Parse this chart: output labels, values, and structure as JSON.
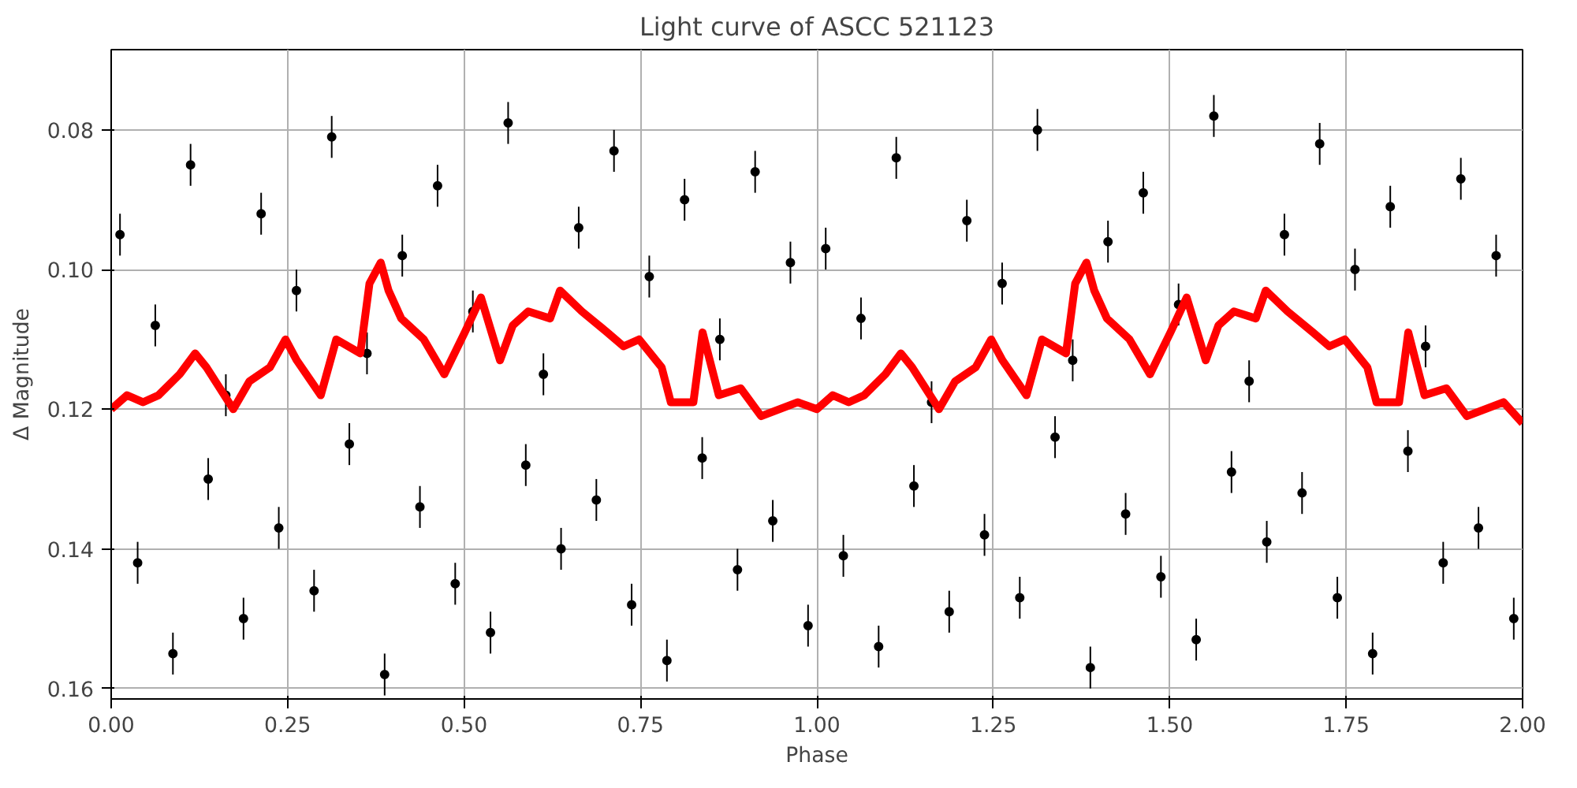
{
  "chart_data": {
    "type": "scatter",
    "title": "Light curve of ASCC 521123",
    "xlabel": "Phase",
    "ylabel": "Δ Magnitude",
    "xlim": [
      0,
      2
    ],
    "ylim": [
      0.1615,
      0.0685
    ],
    "xticks": [
      {
        "value": 0,
        "label": "0.00"
      },
      {
        "value": 0.25,
        "label": "0.25"
      },
      {
        "value": 0.5,
        "label": "0.50"
      },
      {
        "value": 0.75,
        "label": "0.75"
      },
      {
        "value": 1,
        "label": "1.00"
      },
      {
        "value": 1.25,
        "label": "1.25"
      },
      {
        "value": 1.5,
        "label": "1.50"
      },
      {
        "value": 1.75,
        "label": "1.75"
      },
      {
        "value": 2,
        "label": "2.00"
      }
    ],
    "yticks": [
      0.08,
      {
        "value": 0.1,
        "label": "0.10"
      },
      0.12,
      0.14,
      0.16
    ],
    "grid": true,
    "series": [
      {
        "type": "scatter",
        "color": "#000000",
        "marker": "circle",
        "x": [
          0.0125,
          0.0375,
          0.0625,
          0.0875,
          0.1125,
          0.1375,
          0.1625,
          0.1875,
          0.2125,
          0.2375,
          0.2625,
          0.2875,
          0.3125,
          0.3375,
          0.3625,
          0.3875,
          0.4125,
          0.4375,
          0.4625,
          0.4875,
          0.5125,
          0.5375,
          0.5625,
          0.5875,
          0.6125,
          0.6375,
          0.6625,
          0.6875,
          0.7125,
          0.7375,
          0.7625,
          0.7875,
          0.8125,
          0.8375,
          0.8625,
          0.8875,
          0.9125,
          0.9375,
          0.9625,
          0.9875,
          1.0125,
          1.0375,
          1.0625,
          1.0875,
          1.1125,
          1.1375,
          1.1625,
          1.1875,
          1.2125,
          1.2375,
          1.2625,
          1.2875,
          1.3125,
          1.3375,
          1.3625,
          1.3875,
          1.4125,
          1.4375,
          1.4625,
          1.4875,
          1.5125,
          1.5375,
          1.5625,
          1.5875,
          1.6125,
          1.6375,
          1.6625,
          1.6875,
          1.7125,
          1.7375,
          1.7625,
          1.7875,
          1.8125,
          1.8375,
          1.8625,
          1.8875,
          1.9125,
          1.9375,
          1.9625,
          1.9875
        ],
        "values": [
          0.095,
          0.142,
          0.108,
          0.155,
          0.085,
          0.13,
          0.118,
          0.15,
          0.092,
          0.137,
          0.103,
          0.146,
          0.081,
          0.125,
          0.112,
          0.158,
          0.098,
          0.134,
          0.088,
          0.145,
          0.106,
          0.152,
          0.079,
          0.128,
          0.115,
          0.14,
          0.094,
          0.133,
          0.083,
          0.148,
          0.101,
          0.156,
          0.09,
          0.127,
          0.11,
          0.143,
          0.086,
          0.136,
          0.099,
          0.151,
          0.097,
          0.141,
          0.107,
          0.154,
          0.084,
          0.131,
          0.119,
          0.149,
          0.093,
          0.138,
          0.102,
          0.147,
          0.08,
          0.124,
          0.113,
          0.157,
          0.096,
          0.135,
          0.089,
          0.144,
          0.105,
          0.153,
          0.078,
          0.129,
          0.116,
          0.139,
          0.095,
          0.132,
          0.082,
          0.147,
          0.1,
          0.155,
          0.091,
          0.126,
          0.111,
          0.142,
          0.087,
          0.137,
          0.098,
          0.15
        ],
        "errors": [
          0.003,
          0.003,
          0.003,
          0.003,
          0.003,
          0.003,
          0.003,
          0.003,
          0.003,
          0.003,
          0.003,
          0.003,
          0.003,
          0.003,
          0.003,
          0.003,
          0.003,
          0.003,
          0.003,
          0.003,
          0.003,
          0.003,
          0.003,
          0.003,
          0.003,
          0.003,
          0.003,
          0.003,
          0.003,
          0.003,
          0.003,
          0.003,
          0.003,
          0.003,
          0.003,
          0.003,
          0.003,
          0.003,
          0.003,
          0.003,
          0.003,
          0.003,
          0.003,
          0.003,
          0.003,
          0.003,
          0.003,
          0.003,
          0.003,
          0.003,
          0.003,
          0.003,
          0.003,
          0.003,
          0.003,
          0.003,
          0.003,
          0.003,
          0.003,
          0.003,
          0.003,
          0.003,
          0.003,
          0.003,
          0.003,
          0.003,
          0.003,
          0.003,
          0.003,
          0.003,
          0.003,
          0.003,
          0.003,
          0.003,
          0.003,
          0.003,
          0.003,
          0.003,
          0.003,
          0.003
        ]
      },
      {
        "type": "line",
        "color": "#ff0000",
        "marker": "none",
        "line_style": "solid",
        "x": [
          0,
          0.0225,
          0.045,
          0.067,
          0.097,
          0.119,
          0.135,
          0.173,
          0.196,
          0.225,
          0.247,
          0.263,
          0.297,
          0.319,
          0.353,
          0.366,
          0.382,
          0.393,
          0.411,
          0.443,
          0.472,
          0.501,
          0.524,
          0.551,
          0.569,
          0.591,
          0.622,
          0.636,
          0.667,
          0.703,
          0.726,
          0.748,
          0.78,
          0.793,
          0.825,
          0.838,
          0.861,
          0.892,
          0.921,
          0.973,
          1,
          1.0225,
          1.045,
          1.067,
          1.097,
          1.119,
          1.135,
          1.173,
          1.196,
          1.225,
          1.247,
          1.263,
          1.297,
          1.319,
          1.353,
          1.366,
          1.382,
          1.393,
          1.411,
          1.443,
          1.472,
          1.501,
          1.524,
          1.551,
          1.569,
          1.591,
          1.622,
          1.636,
          1.667,
          1.703,
          1.726,
          1.748,
          1.78,
          1.793,
          1.825,
          1.838,
          1.861,
          1.892,
          1.921,
          1.973,
          2
        ],
        "values": [
          0.12,
          0.118,
          0.119,
          0.118,
          0.115,
          0.112,
          0.114,
          0.12,
          0.116,
          0.114,
          0.11,
          0.113,
          0.118,
          0.11,
          0.112,
          0.102,
          0.099,
          0.103,
          0.107,
          0.11,
          0.115,
          0.109,
          0.104,
          0.113,
          0.108,
          0.106,
          0.107,
          0.103,
          0.106,
          0.109,
          0.111,
          0.11,
          0.114,
          0.119,
          0.119,
          0.109,
          0.118,
          0.117,
          0.121,
          0.119,
          0.12,
          0.118,
          0.119,
          0.118,
          0.115,
          0.112,
          0.114,
          0.12,
          0.116,
          0.114,
          0.11,
          0.113,
          0.118,
          0.11,
          0.112,
          0.102,
          0.099,
          0.103,
          0.107,
          0.11,
          0.115,
          0.109,
          0.104,
          0.113,
          0.108,
          0.106,
          0.107,
          0.103,
          0.106,
          0.109,
          0.111,
          0.11,
          0.114,
          0.119,
          0.119,
          0.109,
          0.118,
          0.117,
          0.121,
          0.119,
          0.122
        ]
      }
    ]
  }
}
